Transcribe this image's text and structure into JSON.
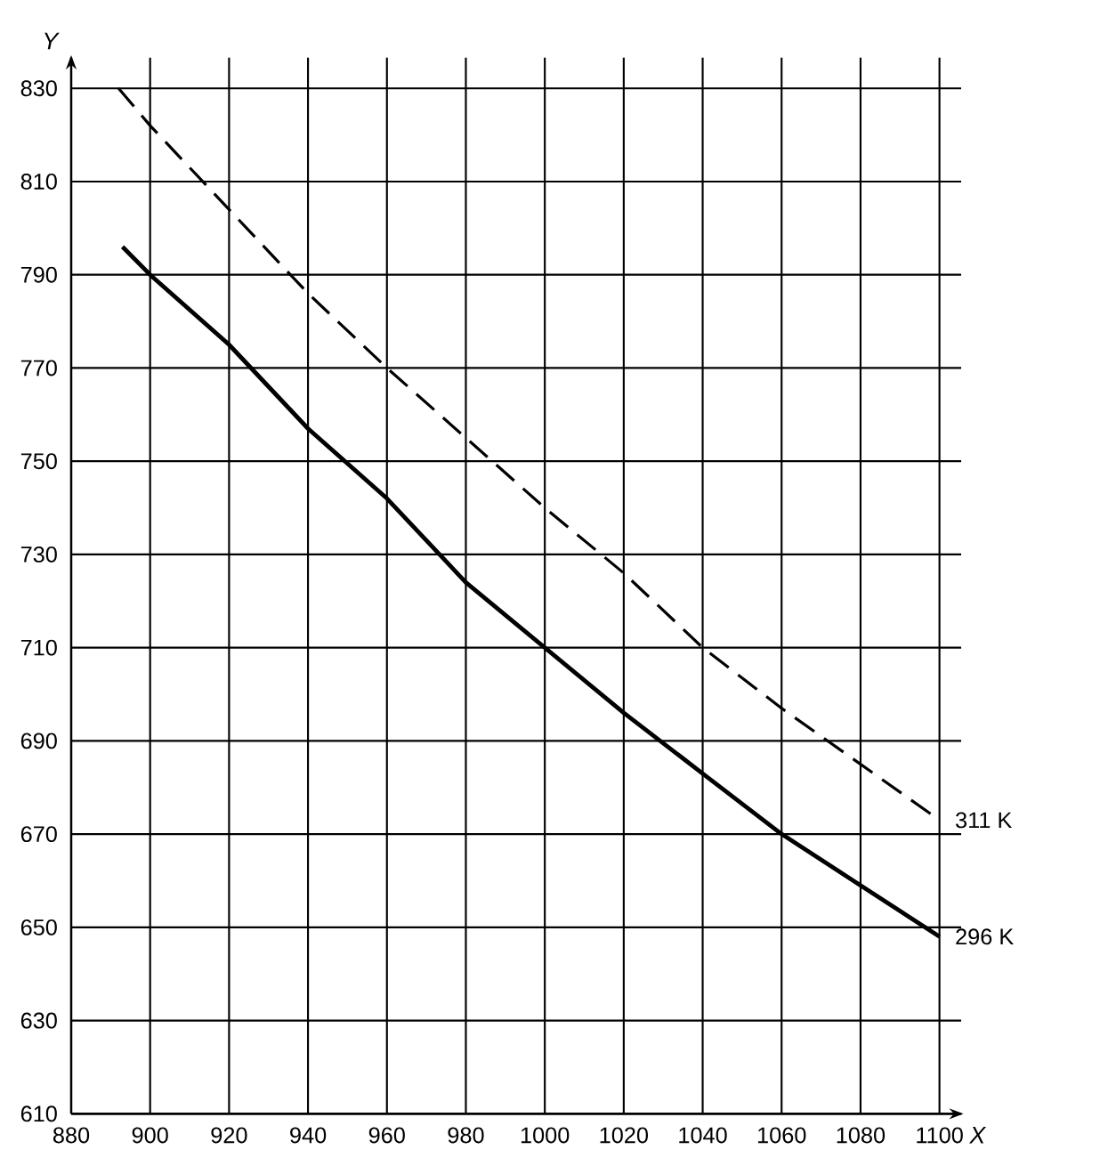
{
  "chart_data": {
    "type": "line",
    "xlabel": "X",
    "ylabel": "Y",
    "xlim": [
      880,
      1100
    ],
    "ylim": [
      610,
      830
    ],
    "xticks": [
      880,
      900,
      920,
      940,
      960,
      980,
      1000,
      1020,
      1040,
      1060,
      1080,
      1100
    ],
    "yticks": [
      610,
      630,
      650,
      670,
      690,
      710,
      730,
      750,
      770,
      790,
      810,
      830
    ],
    "grid": true,
    "legend": false,
    "marker": "none",
    "series": [
      {
        "name": "311 K",
        "color": "#000000",
        "line_style": "dashed",
        "x": [
          892,
          900,
          920,
          940,
          960,
          980,
          1000,
          1020,
          1040,
          1060,
          1080,
          1100
        ],
        "values": [
          830,
          822,
          804,
          786,
          770,
          755,
          740,
          726,
          710,
          697,
          685,
          673
        ]
      },
      {
        "name": "296 K",
        "color": "#000000",
        "line_style": "solid",
        "x": [
          893,
          900,
          920,
          940,
          960,
          980,
          1000,
          1020,
          1040,
          1060,
          1080,
          1100
        ],
        "values": [
          796,
          790,
          775,
          757,
          742,
          724,
          710,
          696,
          683,
          670,
          659,
          648
        ]
      }
    ]
  }
}
